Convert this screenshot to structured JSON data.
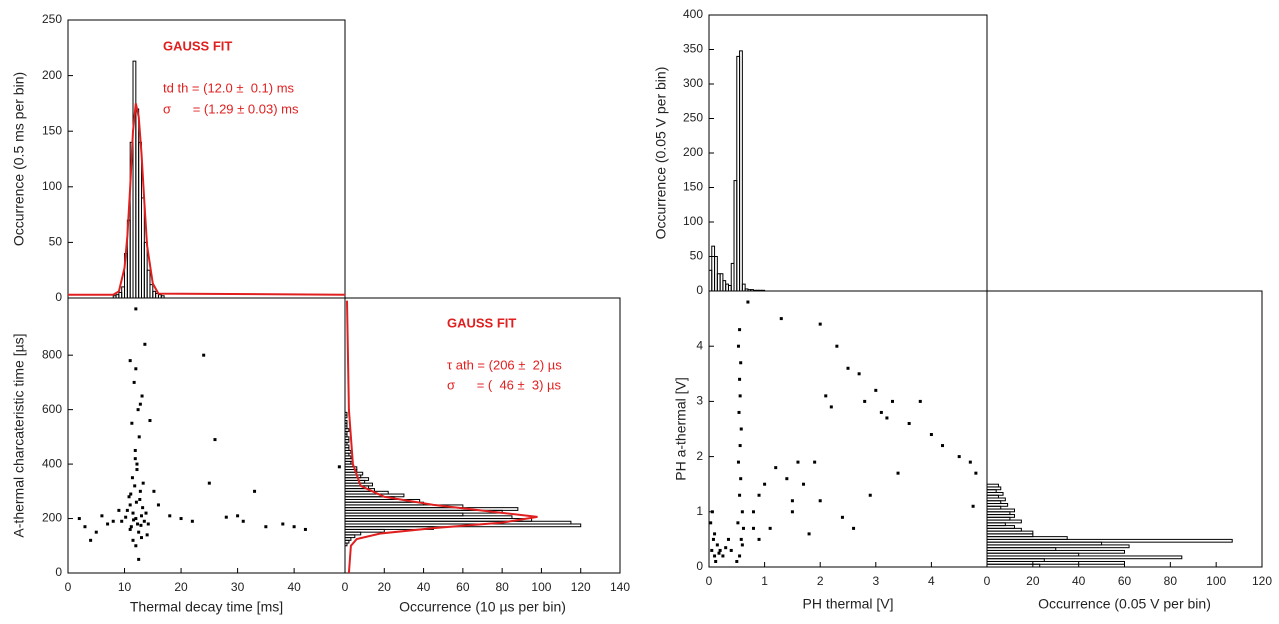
{
  "chart_data": [
    {
      "type": "histogram",
      "orientation": "vertical",
      "color": "#000000",
      "bins": [
        8.0,
        8.5,
        9.0,
        9.5,
        10.0,
        10.5,
        11.0,
        11.5,
        12.0,
        12.5,
        13.0,
        13.5,
        14.0,
        14.5,
        15.0,
        15.5,
        16.0,
        16.5,
        17.0
      ],
      "values": [
        2,
        3,
        5,
        10,
        40,
        70,
        140,
        213,
        170,
        140,
        90,
        50,
        25,
        12,
        6,
        4,
        3,
        2
      ],
      "xlim": [
        0,
        49
      ],
      "ylim": [
        0,
        250
      ],
      "yticks": [
        0,
        50,
        100,
        150,
        200,
        250
      ],
      "ylabel": "Occurrence (0.5 ms per bin)",
      "annotations": [
        "GAUSS FIT",
        "td th = (12.0 ±  0.1) ms",
        "σ      = (1.29 ± 0.03) ms"
      ],
      "fit": {
        "color": "#e02020",
        "x": [
          0,
          8,
          9,
          10,
          10.5,
          11,
          11.5,
          12,
          12.5,
          13,
          13.5,
          14,
          15,
          16,
          49
        ],
        "y": [
          3,
          3,
          6,
          27,
          56,
          100,
          150,
          175,
          163,
          130,
          87,
          47,
          13,
          4,
          3
        ]
      }
    },
    {
      "type": "scatter",
      "color": "#000000",
      "x": [
        12,
        11.5,
        12.3,
        11,
        13,
        12.8,
        11.2,
        10.5,
        12.1,
        13.5,
        11.8,
        12.5,
        10.8,
        13.2,
        11.6,
        12.9,
        11.4,
        12.2,
        13.8,
        10.2,
        14.2,
        9.5,
        11.9,
        12.6,
        11.3,
        12.4,
        13.1,
        11.7,
        12.0,
        11.0,
        13.6,
        12.8,
        14.5,
        15.2,
        16,
        18,
        20,
        22,
        24,
        25,
        26,
        28,
        30,
        31,
        33,
        35,
        38,
        40,
        42,
        48,
        2,
        3,
        4,
        5,
        6,
        7,
        8,
        9,
        12,
        12,
        12.5,
        11.5,
        13,
        14,
        11,
        12.7,
        11.1,
        13.3,
        12.2,
        11.9
      ],
      "y": [
        200,
        220,
        180,
        250,
        210,
        300,
        170,
        230,
        260,
        190,
        320,
        150,
        280,
        240,
        195,
        175,
        350,
        400,
        220,
        205,
        180,
        190,
        450,
        500,
        550,
        600,
        650,
        700,
        750,
        780,
        840,
        620,
        560,
        300,
        250,
        210,
        200,
        190,
        800,
        330,
        490,
        205,
        210,
        190,
        300,
        170,
        180,
        170,
        160,
        390,
        200,
        170,
        120,
        150,
        210,
        180,
        190,
        230,
        970,
        100,
        50,
        120,
        130,
        140,
        160,
        270,
        290,
        330,
        380,
        420
      ],
      "xlim": [
        0,
        49
      ],
      "ylim": [
        0,
        1010
      ],
      "xticks": [
        0,
        10,
        20,
        30,
        40
      ],
      "yticks": [
        0,
        200,
        400,
        600,
        800
      ],
      "xlabel": "Thermal decay time [ms]",
      "ylabel": "A-thermal charcateristic time [µs]"
    },
    {
      "type": "histogram",
      "orientation": "horizontal",
      "color": "#000000",
      "bins": [
        100,
        110,
        120,
        130,
        140,
        150,
        160,
        170,
        180,
        190,
        200,
        210,
        220,
        230,
        240,
        250,
        260,
        270,
        280,
        290,
        300,
        310,
        320,
        330,
        340,
        350,
        360,
        370,
        380,
        390,
        400,
        410,
        420,
        430,
        440,
        450,
        460,
        470,
        480,
        490,
        500,
        510,
        520,
        530,
        540,
        550,
        560,
        570,
        580,
        590,
        600
      ],
      "values": [
        1,
        2,
        3,
        5,
        8,
        20,
        45,
        120,
        115,
        95,
        85,
        60,
        80,
        88,
        60,
        40,
        38,
        25,
        30,
        22,
        15,
        12,
        14,
        10,
        12,
        8,
        9,
        6,
        6,
        4,
        3,
        4,
        3,
        2,
        3,
        2,
        2,
        1,
        2,
        2,
        1,
        1,
        2,
        1,
        1,
        1,
        0,
        1,
        1,
        0
      ],
      "xlim": [
        0,
        140
      ],
      "ylim": [
        0,
        1010
      ],
      "xticks": [
        0,
        20,
        40,
        60,
        80,
        100,
        120,
        140
      ],
      "xlabel": "Occurrence (10 µs per bin)",
      "annotations": [
        "GAUSS FIT",
        "τ ath = (206 ±  2) µs",
        "σ      = (  46 ±  3) µs"
      ],
      "fit": {
        "color": "#e02020",
        "x": [
          1,
          2,
          4,
          8,
          20,
          45,
          75,
          98,
          80,
          45,
          18,
          6,
          3,
          2
        ],
        "y": [
          1000,
          600,
          400,
          320,
          280,
          250,
          225,
          206,
          185,
          165,
          145,
          125,
          100,
          0
        ]
      }
    },
    {
      "type": "histogram",
      "orientation": "vertical",
      "color": "#000000",
      "bins": [
        0,
        0.05,
        0.1,
        0.15,
        0.2,
        0.25,
        0.3,
        0.35,
        0.4,
        0.45,
        0.5,
        0.55,
        0.6,
        0.65,
        0.7,
        0.75,
        0.8,
        0.85,
        0.9,
        0.95,
        1.0
      ],
      "values": [
        30,
        65,
        50,
        25,
        25,
        15,
        10,
        8,
        40,
        160,
        340,
        348,
        10,
        3,
        2,
        2,
        1,
        1,
        1,
        1
      ],
      "xlim": [
        0,
        5
      ],
      "ylim": [
        0,
        400
      ],
      "yticks": [
        0,
        50,
        100,
        150,
        200,
        250,
        300,
        350,
        400
      ],
      "ylabel": "Occurrence (0.05 V per bin)"
    },
    {
      "type": "scatter",
      "color": "#000000",
      "x": [
        0.55,
        0.58,
        0.52,
        0.6,
        0.55,
        0.57,
        0.53,
        0.56,
        0.58,
        0.54,
        0.56,
        0.55,
        0.57,
        0.53,
        0.55,
        0.6,
        0.5,
        0.62,
        0.05,
        0.1,
        0.15,
        0.2,
        0.08,
        0.25,
        0.3,
        0.12,
        0.18,
        0.03,
        0.06,
        0.1,
        0.35,
        0.4,
        0.7,
        0.8,
        0.9,
        1.0,
        1.1,
        1.2,
        1.3,
        1.4,
        1.5,
        1.6,
        1.7,
        1.8,
        1.9,
        2.0,
        2.0,
        2.1,
        2.2,
        2.3,
        2.4,
        2.5,
        2.6,
        2.7,
        2.8,
        2.9,
        3.0,
        3.1,
        3.2,
        3.3,
        3.4,
        3.6,
        3.8,
        4.0,
        4.2,
        4.5,
        4.7,
        4.75,
        4.8,
        1.5,
        0.9,
        0.8
      ],
      "y": [
        0.2,
        0.5,
        0.8,
        1.0,
        1.3,
        1.6,
        1.9,
        2.2,
        2.5,
        2.8,
        3.1,
        3.4,
        3.7,
        4.0,
        4.3,
        0.4,
        0.1,
        0.7,
        0.3,
        0.2,
        0.4,
        0.3,
        0.5,
        0.2,
        0.35,
        0.1,
        0.25,
        0.8,
        1.0,
        0.6,
        0.5,
        0.3,
        4.8,
        1.0,
        1.3,
        1.5,
        0.7,
        1.8,
        4.5,
        1.6,
        1.2,
        1.9,
        1.5,
        0.6,
        1.9,
        4.4,
        1.2,
        3.1,
        2.9,
        4.0,
        0.9,
        3.6,
        0.7,
        3.5,
        3.0,
        1.3,
        3.2,
        2.8,
        2.7,
        3.0,
        1.7,
        2.6,
        3.0,
        2.4,
        2.2,
        2.0,
        1.9,
        1.1,
        1.7,
        1.0,
        0.5,
        0.7
      ],
      "xlim": [
        0,
        5
      ],
      "ylim": [
        0,
        5
      ],
      "xticks": [
        0,
        1,
        2,
        3,
        4
      ],
      "yticks": [
        0,
        1,
        2,
        3,
        4
      ],
      "xlabel": "PH thermal [V]",
      "ylabel": "PH a-thermal [V]"
    },
    {
      "type": "histogram",
      "orientation": "horizontal",
      "color": "#000000",
      "bins": [
        0,
        0.05,
        0.1,
        0.15,
        0.2,
        0.25,
        0.3,
        0.35,
        0.4,
        0.45,
        0.5,
        0.55,
        0.6,
        0.65,
        0.7,
        0.75,
        0.8,
        0.85,
        0.9,
        0.95,
        1.0,
        1.05,
        1.1,
        1.15,
        1.2,
        1.25,
        1.3,
        1.35,
        1.4,
        1.45,
        1.5
      ],
      "values": [
        23,
        60,
        25,
        85,
        40,
        60,
        30,
        62,
        50,
        107,
        35,
        20,
        20,
        15,
        12,
        8,
        15,
        10,
        12,
        10,
        12,
        6,
        9,
        6,
        8,
        5,
        7,
        4,
        6,
        5
      ],
      "xlim": [
        0,
        120
      ],
      "ylim": [
        0,
        5
      ],
      "xticks": [
        0,
        20,
        40,
        60,
        80,
        100,
        120
      ],
      "xlabel": "Occurrence (0.05 V per bin)"
    }
  ]
}
